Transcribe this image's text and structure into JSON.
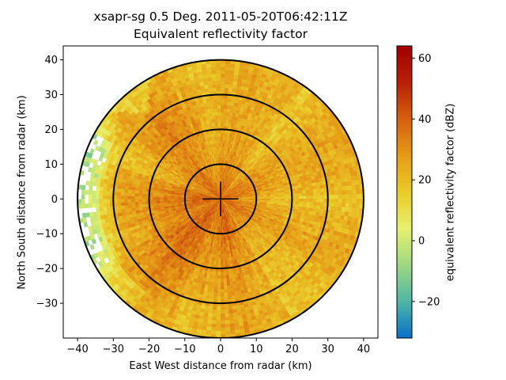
{
  "chart_data": {
    "type": "heatmap",
    "subtype": "radar-ppi",
    "title_line1": "xsapr-sg 0.5 Deg. 2011-05-20T06:42:11Z",
    "title_line2": "Equivalent reflectivity factor",
    "xlabel": "East West distance from radar (km)",
    "ylabel": "North South distance from radar (km)",
    "xlim": [
      -44,
      44
    ],
    "ylim": [
      -40,
      44
    ],
    "xticks": [
      -40,
      -30,
      -20,
      -10,
      0,
      10,
      20,
      30,
      40
    ],
    "yticks": [
      -30,
      -20,
      -10,
      0,
      10,
      20,
      30,
      40
    ],
    "max_range_km": 40,
    "range_rings_km": [
      10,
      20,
      30,
      40
    ],
    "center_cross_km": 5,
    "colorbar": {
      "label": "equivalent reflectivity factor (dBZ)",
      "vmin": -32,
      "vmax": 64,
      "ticks": [
        -20,
        0,
        20,
        40,
        60
      ],
      "colors": [
        "#0a6fc9",
        "#4fb6a4",
        "#9ed884",
        "#e8f06e",
        "#eacb2a",
        "#e59a16",
        "#d4600f",
        "#b82008",
        "#a10000"
      ]
    },
    "field_description_values": {
      "typical_dbz_center": 30,
      "typical_dbz_edge_west": 0
    }
  }
}
